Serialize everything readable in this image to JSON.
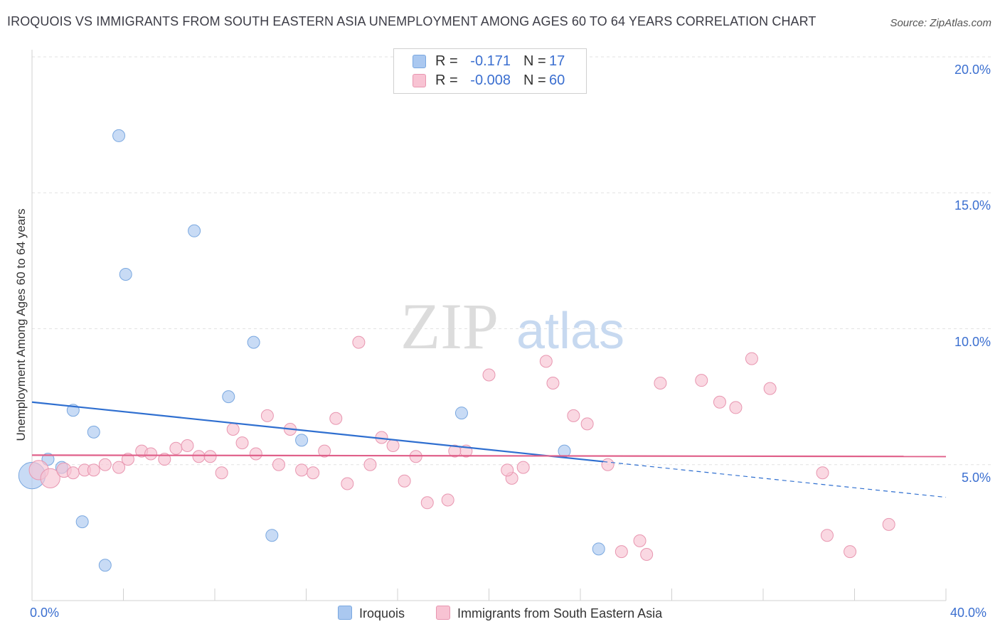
{
  "title": "IROQUOIS VS IMMIGRANTS FROM SOUTH EASTERN ASIA UNEMPLOYMENT AMONG AGES 60 TO 64 YEARS CORRELATION CHART",
  "source": "Source: ZipAtlas.com",
  "watermark": {
    "zip": "ZIP",
    "atlas": "atlas"
  },
  "stats": [
    {
      "r_label": "R =",
      "r_value": "-0.171",
      "n_label": "N =",
      "n_value": "17",
      "color": "#aac8f0",
      "border": "#7aa8e0"
    },
    {
      "r_label": "R =",
      "r_value": "-0.008",
      "n_label": "N =",
      "n_value": "60",
      "color": "#f8c3d3",
      "border": "#e896b0"
    }
  ],
  "legend": [
    {
      "label": "Iroquois",
      "color": "#aac8f0",
      "border": "#7aa8e0"
    },
    {
      "label": "Immigrants from South Eastern Asia",
      "color": "#f8c3d3",
      "border": "#e896b0"
    }
  ],
  "chart_data": {
    "type": "scatter",
    "title": "IROQUOIS VS IMMIGRANTS FROM SOUTH EASTERN ASIA UNEMPLOYMENT AMONG AGES 60 TO 64 YEARS CORRELATION CHART",
    "xlabel": "",
    "ylabel": "Unemployment Among Ages 60 to 64 years",
    "xlim": [
      0,
      40
    ],
    "ylim": [
      0,
      20
    ],
    "x_tick_labels": [
      "0.0%",
      "40.0%"
    ],
    "y_ticks": [
      5,
      10,
      15,
      20
    ],
    "y_tick_labels": [
      "5.0%",
      "10.0%",
      "15.0%",
      "20.0%"
    ],
    "grid": "horizontal dashed",
    "series": [
      {
        "name": "Iroquois",
        "color": "#aac8f0",
        "stroke": "#7aa8e0",
        "line_color": "#2f6fd0",
        "points": [
          [
            0.0,
            4.6,
            2.2
          ],
          [
            0.7,
            5.2,
            1
          ],
          [
            1.3,
            4.9,
            1
          ],
          [
            1.8,
            7.0,
            1
          ],
          [
            2.2,
            2.9,
            1
          ],
          [
            2.7,
            6.2,
            1
          ],
          [
            3.2,
            1.3,
            1
          ],
          [
            3.8,
            17.1,
            1
          ],
          [
            4.1,
            12.0,
            1
          ],
          [
            7.1,
            13.6,
            1
          ],
          [
            8.6,
            7.5,
            1
          ],
          [
            9.7,
            9.5,
            1
          ],
          [
            10.5,
            2.4,
            1
          ],
          [
            11.8,
            5.9,
            1
          ],
          [
            18.8,
            6.9,
            1
          ],
          [
            23.3,
            5.5,
            1
          ],
          [
            24.8,
            1.9,
            1
          ]
        ],
        "trend": {
          "x_start": 0,
          "y_start": 7.3,
          "x_solid_end": 25.0,
          "x_end": 40,
          "y_end": 3.8
        }
      },
      {
        "name": "Immigrants from South Eastern Asia",
        "color": "#f8c3d3",
        "stroke": "#e896b0",
        "line_color": "#e0608a",
        "points": [
          [
            0.3,
            4.8,
            1.6
          ],
          [
            0.8,
            4.5,
            1.6
          ],
          [
            1.4,
            4.8,
            1.2
          ],
          [
            1.8,
            4.7,
            1
          ],
          [
            2.3,
            4.8,
            1
          ],
          [
            2.7,
            4.8,
            1
          ],
          [
            3.2,
            5.0,
            1
          ],
          [
            3.8,
            4.9,
            1
          ],
          [
            4.2,
            5.2,
            1
          ],
          [
            4.8,
            5.5,
            1
          ],
          [
            5.2,
            5.4,
            1
          ],
          [
            5.8,
            5.2,
            1
          ],
          [
            6.3,
            5.6,
            1
          ],
          [
            6.8,
            5.7,
            1
          ],
          [
            7.3,
            5.3,
            1
          ],
          [
            7.8,
            5.3,
            1
          ],
          [
            8.3,
            4.7,
            1
          ],
          [
            8.8,
            6.3,
            1
          ],
          [
            9.2,
            5.8,
            1
          ],
          [
            9.8,
            5.4,
            1
          ],
          [
            10.3,
            6.8,
            1
          ],
          [
            10.8,
            5.0,
            1
          ],
          [
            11.3,
            6.3,
            1
          ],
          [
            11.8,
            4.8,
            1
          ],
          [
            12.3,
            4.7,
            1
          ],
          [
            12.8,
            5.5,
            1
          ],
          [
            13.3,
            6.7,
            1
          ],
          [
            13.8,
            4.3,
            1
          ],
          [
            14.3,
            9.5,
            1
          ],
          [
            14.8,
            5.0,
            1
          ],
          [
            15.3,
            6.0,
            1
          ],
          [
            15.8,
            5.7,
            1
          ],
          [
            16.3,
            4.4,
            1
          ],
          [
            16.8,
            5.3,
            1
          ],
          [
            17.3,
            3.6,
            1
          ],
          [
            18.2,
            3.7,
            1
          ],
          [
            19.0,
            5.5,
            1
          ],
          [
            20.0,
            8.3,
            1
          ],
          [
            21.0,
            4.5,
            1
          ],
          [
            21.5,
            4.9,
            1
          ],
          [
            22.5,
            8.8,
            1
          ],
          [
            22.8,
            8.0,
            1
          ],
          [
            23.7,
            6.8,
            1
          ],
          [
            24.3,
            6.5,
            1
          ],
          [
            25.2,
            5.0,
            1
          ],
          [
            25.8,
            1.8,
            1
          ],
          [
            26.6,
            2.2,
            1
          ],
          [
            26.9,
            1.7,
            1
          ],
          [
            27.5,
            8.0,
            1
          ],
          [
            29.3,
            8.1,
            1
          ],
          [
            30.1,
            7.3,
            1
          ],
          [
            30.8,
            7.1,
            1
          ],
          [
            31.5,
            8.9,
            1
          ],
          [
            32.3,
            7.8,
            1
          ],
          [
            34.6,
            4.7,
            1
          ],
          [
            34.8,
            2.4,
            1
          ],
          [
            35.8,
            1.8,
            1
          ],
          [
            37.5,
            2.8,
            1
          ],
          [
            18.5,
            5.5,
            1
          ],
          [
            20.8,
            4.8,
            1
          ]
        ],
        "trend": {
          "x_start": 0,
          "y_start": 5.35,
          "x_end": 40,
          "y_end": 5.3
        }
      }
    ]
  }
}
